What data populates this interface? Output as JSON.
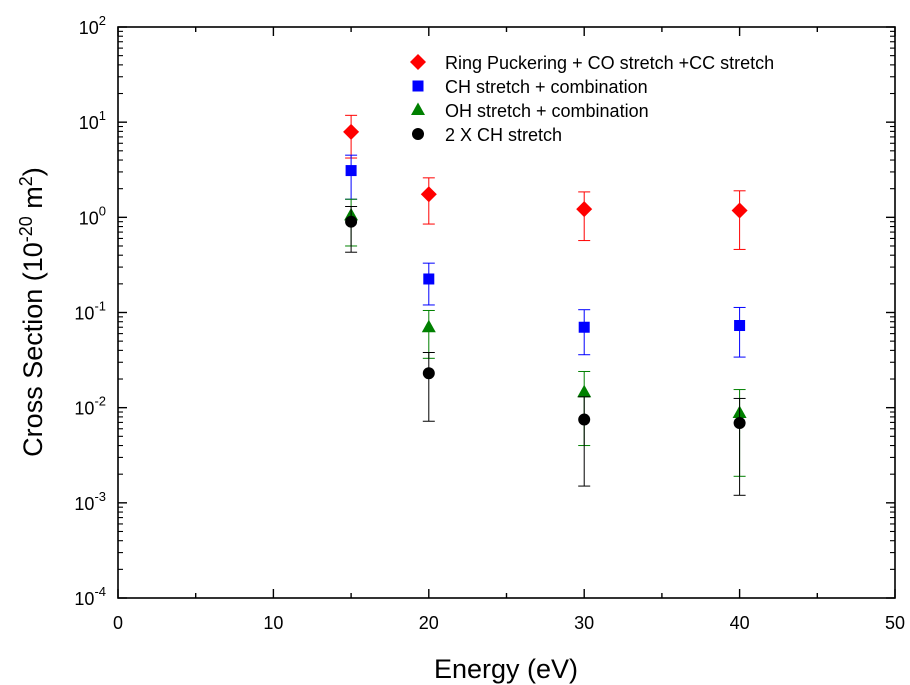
{
  "chart_data": {
    "type": "scatter",
    "title": "",
    "xlabel": "Energy (eV)",
    "ylabel": {
      "base": "Cross Section (10",
      "exponent": "-20",
      "mid": " m",
      "exponent2": "2",
      "end": ")"
    },
    "xlim": [
      0,
      50
    ],
    "ylim": [
      0.0001,
      100
    ],
    "yscale": "log",
    "x_ticks": [
      "0",
      "10",
      "20",
      "30",
      "40",
      "50"
    ],
    "y_ticks": [
      {
        "base": "10",
        "exp": "-4"
      },
      {
        "base": "10",
        "exp": "-3"
      },
      {
        "base": "10",
        "exp": "-2"
      },
      {
        "base": "10",
        "exp": "-1"
      },
      {
        "base": "10",
        "exp": "0"
      },
      {
        "base": "10",
        "exp": "1"
      },
      {
        "base": "10",
        "exp": "2"
      }
    ],
    "grid": false,
    "legend_position": "top-right",
    "series": [
      {
        "name": "Ring Puckering + CO stretch +CC stretch",
        "marker": "diamond",
        "color": "#ff0000",
        "x": [
          15,
          20,
          30,
          40
        ],
        "y": [
          7.9,
          1.75,
          1.22,
          1.18
        ],
        "y_err_high": [
          11.8,
          2.6,
          1.85,
          1.9
        ],
        "y_err_low": [
          4.2,
          0.85,
          0.57,
          0.46
        ]
      },
      {
        "name": "CH stretch + combination",
        "marker": "square",
        "color": "#0000ff",
        "x": [
          15,
          20,
          30,
          40
        ],
        "y": [
          3.1,
          0.225,
          0.07,
          0.073
        ],
        "y_err_high": [
          4.5,
          0.33,
          0.107,
          0.113
        ],
        "y_err_low": [
          1.55,
          0.12,
          0.036,
          0.034
        ]
      },
      {
        "name": "OH stretch + combination",
        "marker": "triangle",
        "color": "#008000",
        "x": [
          15,
          20,
          30,
          40
        ],
        "y": [
          1.05,
          0.07,
          0.0145,
          0.0088
        ],
        "y_err_high": [
          1.55,
          0.105,
          0.024,
          0.0155
        ],
        "y_err_low": [
          0.5,
          0.033,
          0.004,
          0.0019
        ]
      },
      {
        "name": "2 X CH stretch",
        "marker": "circle",
        "color": "#000000",
        "x": [
          15,
          20,
          30,
          40
        ],
        "y": [
          0.9,
          0.023,
          0.0075,
          0.0069
        ],
        "y_err_high": [
          1.3,
          0.038,
          0.013,
          0.0125
        ],
        "y_err_low": [
          0.43,
          0.0072,
          0.0015,
          0.0012
        ]
      }
    ]
  }
}
